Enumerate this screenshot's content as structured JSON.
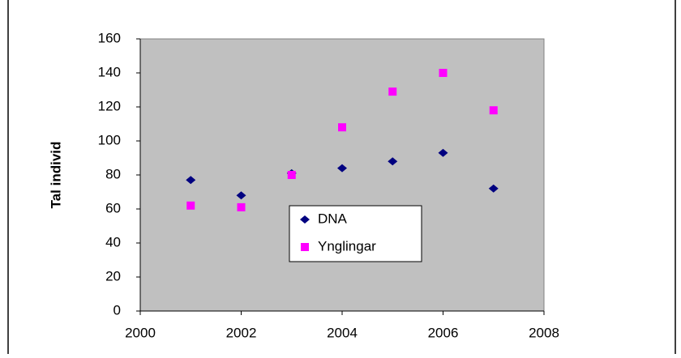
{
  "chart_data": {
    "type": "scatter",
    "ylabel": "Tal individ",
    "xlim": [
      2000,
      2008
    ],
    "xticks": [
      2000,
      2002,
      2004,
      2006,
      2008
    ],
    "ylim": [
      0,
      160
    ],
    "yticks": [
      0,
      20,
      40,
      60,
      80,
      100,
      120,
      140,
      160
    ],
    "plot_background": "#c0c0c0",
    "legend": "center",
    "series": [
      {
        "name": "DNA",
        "color": "#000080",
        "marker": "diamond",
        "x": [
          2001,
          2002,
          2003,
          2004,
          2005,
          2006,
          2007
        ],
        "values": [
          77,
          68,
          81,
          84,
          88,
          93,
          72
        ]
      },
      {
        "name": "Ynglingar",
        "color": "#ff00ff",
        "marker": "square",
        "x": [
          2001,
          2002,
          2003,
          2004,
          2005,
          2006,
          2007
        ],
        "values": [
          62,
          61,
          80,
          108,
          129,
          140,
          118
        ]
      }
    ]
  }
}
